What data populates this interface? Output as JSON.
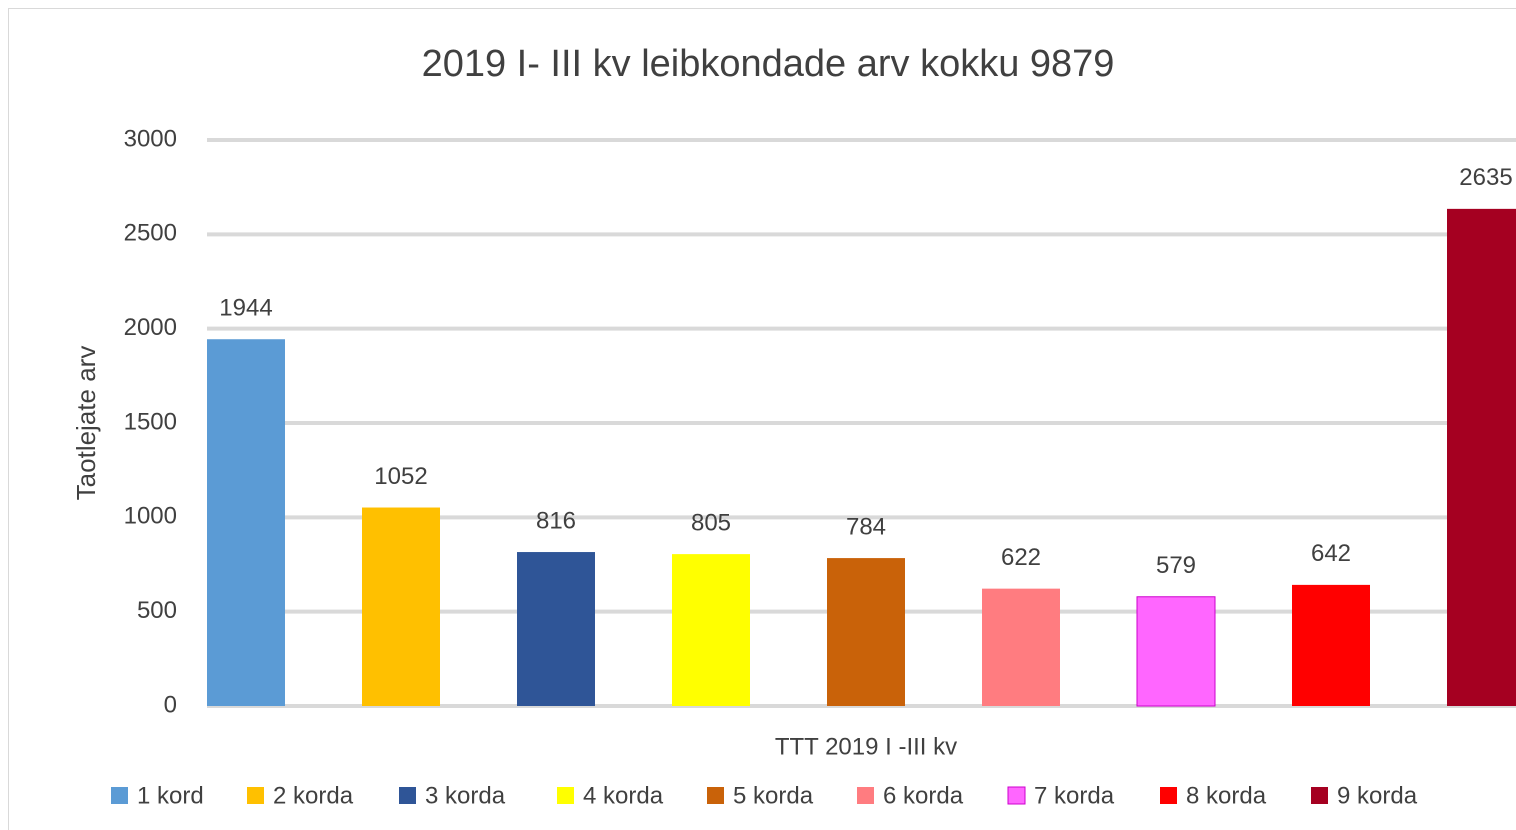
{
  "chart_data": {
    "type": "bar",
    "title": "2019 I- III kv leibkondade arv kokku 9879",
    "ylabel": "Taotlejate arv",
    "categories": [
      "TTT 2019 I -III kv"
    ],
    "series": [
      {
        "name": "1 kord",
        "color": "#5b9bd5",
        "values": [
          1944
        ]
      },
      {
        "name": "2 korda",
        "color": "#ffc000",
        "values": [
          1052
        ]
      },
      {
        "name": "3 korda",
        "color": "#2f5597",
        "values": [
          816
        ]
      },
      {
        "name": "4 korda",
        "color": "#ffff00",
        "values": [
          805
        ]
      },
      {
        "name": "5 korda",
        "color": "#c96209",
        "values": [
          784
        ]
      },
      {
        "name": "6 korda",
        "color": "#ff7c80",
        "values": [
          622
        ]
      },
      {
        "name": "7 korda",
        "color": "#ff66ff",
        "values": [
          579
        ]
      },
      {
        "name": "8 korda",
        "color": "#ff0000",
        "values": [
          642
        ]
      },
      {
        "name": "9 korda",
        "color": "#a50021",
        "values": [
          2635
        ]
      }
    ],
    "ylim": [
      0,
      3000
    ],
    "yticks": [
      0,
      500,
      1000,
      1500,
      2000,
      2500,
      3000
    ],
    "grid": true,
    "legend": "bottom"
  }
}
